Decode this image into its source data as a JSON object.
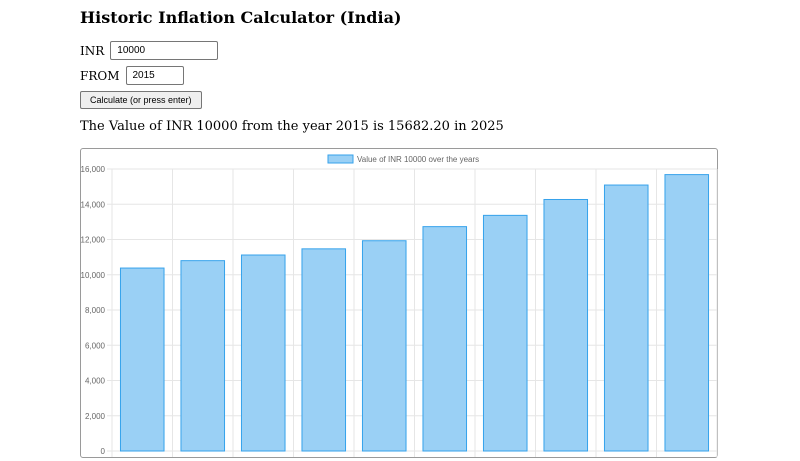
{
  "page": {
    "title": "Historic Inflation Calculator (India)"
  },
  "form": {
    "amount_label": "INR",
    "amount_value": "10000",
    "from_label": "FROM",
    "from_value": "2015",
    "calculate_label": "Calculate (or press enter)"
  },
  "result": {
    "text": "The Value of INR 10000 from the year 2015 is 15682.20 in 2025"
  },
  "colors": {
    "bar_fill": "#9ad0f5",
    "bar_stroke": "#36a2eb",
    "grid": "#e6e6e6",
    "tick_text": "#666666"
  },
  "chart_data": {
    "type": "bar",
    "legend": "Value of INR 10000 over the years",
    "legend_position": "top",
    "ylim": [
      0,
      16000
    ],
    "yticks": [
      "0",
      "2,000",
      "4,000",
      "6,000",
      "8,000",
      "10,000",
      "12,000",
      "14,000",
      "16,000"
    ],
    "grid": true,
    "values": [
      10380,
      10800,
      11120,
      11470,
      11930,
      12730,
      13370,
      14270,
      15090,
      15682.2
    ]
  }
}
